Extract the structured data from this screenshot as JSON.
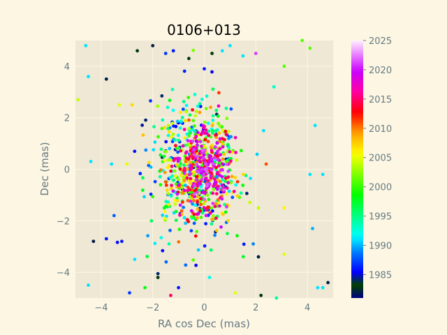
{
  "chart_data": {
    "type": "scatter",
    "title": "0106+013",
    "xlabel": "RA cos Dec (mas)",
    "ylabel": "Dec (mas)",
    "xlim": [
      -5,
      5
    ],
    "ylim": [
      -5,
      5
    ],
    "xticks": [
      -4,
      -2,
      0,
      2,
      4
    ],
    "yticks": [
      -4,
      -2,
      0,
      2,
      4
    ],
    "grid": true,
    "colorbar": {
      "label": "",
      "range": [
        1981,
        2025
      ],
      "ticks": [
        1985,
        1990,
        1995,
        2000,
        2005,
        2010,
        2015,
        2020,
        2025
      ],
      "colormap": "gist_ncar"
    },
    "points": [
      {
        "x": -4.9,
        "y": 2.7,
        "year": 2004
      },
      {
        "x": -4.6,
        "y": 4.8,
        "year": 1991
      },
      {
        "x": -4.5,
        "y": 3.6,
        "year": 1991
      },
      {
        "x": -4.5,
        "y": -4.5,
        "year": 1991
      },
      {
        "x": -4.4,
        "y": 0.3,
        "year": 1991
      },
      {
        "x": -4.3,
        "y": -2.8,
        "year": 1982
      },
      {
        "x": -3.8,
        "y": 3.5,
        "year": 1982
      },
      {
        "x": -3.6,
        "y": 0.2,
        "year": 1991
      },
      {
        "x": -3.5,
        "y": -1.8,
        "year": 1988
      },
      {
        "x": -3.3,
        "y": 2.5,
        "year": 2005
      },
      {
        "x": -3.2,
        "y": -2.8,
        "year": 1986
      },
      {
        "x": -3.0,
        "y": 0.2,
        "year": 2005
      },
      {
        "x": -2.9,
        "y": -4.8,
        "year": 1987
      },
      {
        "x": -2.8,
        "y": 2.5,
        "year": 2007
      },
      {
        "x": -2.6,
        "y": 4.6,
        "year": 1983
      },
      {
        "x": -2.3,
        "y": -4.6,
        "year": 1998
      },
      {
        "x": -2.0,
        "y": 4.8,
        "year": 1982
      },
      {
        "x": -1.5,
        "y": 4.5,
        "year": 1987
      },
      {
        "x": -1.2,
        "y": 4.6,
        "year": 1986
      },
      {
        "x": -0.6,
        "y": 4.3,
        "year": 1983
      },
      {
        "x": 0.0,
        "y": 3.9,
        "year": 1986
      },
      {
        "x": 0.3,
        "y": 4.5,
        "year": 1983
      },
      {
        "x": 0.7,
        "y": 4.6,
        "year": 1991
      },
      {
        "x": 1.0,
        "y": 4.8,
        "year": 1991
      },
      {
        "x": 1.5,
        "y": 4.4,
        "year": 1991
      },
      {
        "x": 2.0,
        "y": 4.5,
        "year": 2021
      },
      {
        "x": 2.7,
        "y": 3.2,
        "year": 1993
      },
      {
        "x": 3.1,
        "y": 4.0,
        "year": 2001
      },
      {
        "x": 3.8,
        "y": 5.0,
        "year": 2001
      },
      {
        "x": 4.1,
        "y": 4.7,
        "year": 2001
      },
      {
        "x": 4.3,
        "y": 1.7,
        "year": 1991
      },
      {
        "x": 4.6,
        "y": -0.2,
        "year": 1991
      },
      {
        "x": 4.1,
        "y": -0.2,
        "year": 1991
      },
      {
        "x": 4.2,
        "y": -2.3,
        "year": 1990
      },
      {
        "x": 4.4,
        "y": -4.6,
        "year": 1991
      },
      {
        "x": 4.6,
        "y": -4.6,
        "year": 1991
      },
      {
        "x": 4.8,
        "y": -4.4,
        "year": 1982
      },
      {
        "x": 3.1,
        "y": -1.5,
        "year": 2006
      },
      {
        "x": 3.1,
        "y": -3.3,
        "year": 2005
      },
      {
        "x": 2.8,
        "y": -5.0,
        "year": 1994
      },
      {
        "x": 2.2,
        "y": -4.9,
        "year": 1983
      },
      {
        "x": 2.1,
        "y": -3.4,
        "year": 1982
      },
      {
        "x": 1.9,
        "y": -2.9,
        "year": 1989
      },
      {
        "x": 2.1,
        "y": -1.5,
        "year": 2004
      },
      {
        "x": 2.4,
        "y": 0.2,
        "year": 2011
      },
      {
        "x": 2.3,
        "y": 1.5,
        "year": 1991
      },
      {
        "x": 1.2,
        "y": -4.8,
        "year": 2005
      },
      {
        "x": 0.2,
        "y": -4.2,
        "year": 1992
      },
      {
        "x": -1.0,
        "y": -4.6,
        "year": 1986
      },
      {
        "x": -1.3,
        "y": -4.9,
        "year": 2015
      },
      {
        "x": -1.8,
        "y": -4.2,
        "year": 1983
      },
      {
        "x": -2.7,
        "y": -3.5,
        "year": 1991
      },
      {
        "x": -3.8,
        "y": -2.7,
        "year": 1986
      }
    ]
  }
}
